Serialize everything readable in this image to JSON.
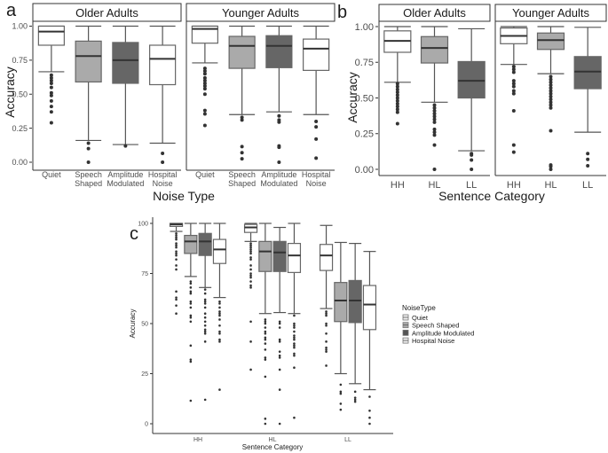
{
  "chart_data": [
    {
      "panel_letter": "a",
      "type": "box",
      "title": "",
      "xlabel": "Noise Type",
      "ylabel": "Accuracy",
      "ylim": [
        0,
        1
      ],
      "yticks": [
        "0.00",
        "0.25",
        "0.50",
        "0.75",
        "1.00"
      ],
      "ytick_values": [
        0,
        0.25,
        0.5,
        0.75,
        1
      ],
      "facets": [
        {
          "name": "Older Adults",
          "boxes": [
            {
              "label": [
                "Quiet"
              ],
              "fill": "#ffffff",
              "lo": 0.665,
              "q1": 0.86,
              "median": 0.96,
              "q3": 1.0,
              "hi": 1.0,
              "outliers": [
                0.64,
                0.62,
                0.6,
                0.58,
                0.55,
                0.51,
                0.49,
                0.45,
                0.41,
                0.37,
                0.29
              ]
            },
            {
              "label": [
                "Speech",
                "Shaped"
              ],
              "fill": "#aaaaaa",
              "lo": 0.16,
              "q1": 0.59,
              "median": 0.78,
              "q3": 0.89,
              "hi": 1.0,
              "outliers": [
                0.14,
                0.1,
                0
              ]
            },
            {
              "label": [
                "Amplitude",
                "Modulated"
              ],
              "fill": "#666666",
              "lo": 0.13,
              "q1": 0.58,
              "median": 0.75,
              "q3": 0.88,
              "hi": 1.0,
              "outliers": [
                0.12
              ]
            },
            {
              "label": [
                "Hospital",
                "Noise"
              ],
              "fill": "#ffffff",
              "lo": 0.14,
              "q1": 0.57,
              "median": 0.76,
              "q3": 0.86,
              "hi": 1.0,
              "outliers": [
                0.065,
                0
              ]
            }
          ]
        },
        {
          "name": "Younger Adults",
          "boxes": [
            {
              "label": [
                "Quiet"
              ],
              "fill": "#ffffff",
              "lo": 0.73,
              "q1": 0.875,
              "median": 0.98,
              "q3": 1.0,
              "hi": 1.0,
              "outliers": [
                0.69,
                0.67,
                0.65,
                0.62,
                0.6,
                0.58,
                0.56,
                0.54,
                0.5,
                0.38,
                0.355,
                0.27
              ]
            },
            {
              "label": [
                "Speech",
                "Shaped"
              ],
              "fill": "#aaaaaa",
              "lo": 0.35,
              "q1": 0.69,
              "median": 0.855,
              "q3": 0.925,
              "hi": 1.0,
              "outliers": [
                0.33,
                0.31,
                0.115,
                0.07,
                0.025
              ]
            },
            {
              "label": [
                "Amplitude",
                "Modulated"
              ],
              "fill": "#666666",
              "lo": 0.37,
              "q1": 0.695,
              "median": 0.855,
              "q3": 0.93,
              "hi": 1.0,
              "outliers": [
                0.34,
                0.31,
                0.295,
                0.12,
                0.11,
                0
              ]
            },
            {
              "label": [
                "Hospital",
                "Noise"
              ],
              "fill": "#ffffff",
              "lo": 0.35,
              "q1": 0.675,
              "median": 0.835,
              "q3": 0.905,
              "hi": 1.0,
              "outliers": [
                0.3,
                0.26,
                0.17,
                0.03
              ]
            }
          ]
        }
      ]
    },
    {
      "panel_letter": "b",
      "type": "box",
      "title": "",
      "xlabel": "Sentence Category",
      "ylabel": "Accuracy",
      "ylim": [
        0,
        1
      ],
      "yticks": [
        "0.00",
        "0.25",
        "0.50",
        "0.75",
        "1.00"
      ],
      "ytick_values": [
        0,
        0.25,
        0.5,
        0.75,
        1
      ],
      "facets": [
        {
          "name": "Older Adults",
          "boxes": [
            {
              "label": [
                "HH"
              ],
              "fill": "#ffffff",
              "lo": 0.61,
              "q1": 0.82,
              "median": 0.9,
              "q3": 0.97,
              "hi": 1.0,
              "outliers": [
                0.6,
                0.58,
                0.56,
                0.54,
                0.52,
                0.5,
                0.48,
                0.46,
                0.44,
                0.42,
                0.4,
                0.32
              ]
            },
            {
              "label": [
                "HL"
              ],
              "fill": "#aaaaaa",
              "lo": 0.47,
              "q1": 0.745,
              "median": 0.85,
              "q3": 0.93,
              "hi": 1.0,
              "outliers": [
                0.45,
                0.43,
                0.41,
                0.39,
                0.37,
                0.35,
                0.33,
                0.28,
                0.26,
                0.24,
                0.17,
                0
              ]
            },
            {
              "label": [
                "LL"
              ],
              "fill": "#666666",
              "lo": 0.13,
              "q1": 0.5,
              "median": 0.62,
              "q3": 0.755,
              "hi": 0.985,
              "outliers": [
                0.11,
                0.1,
                0.065,
                0
              ]
            }
          ]
        },
        {
          "name": "Younger Adults",
          "boxes": [
            {
              "label": [
                "HH"
              ],
              "fill": "#ffffff",
              "lo": 0.735,
              "q1": 0.88,
              "median": 0.935,
              "q3": 0.99,
              "hi": 1.0,
              "outliers": [
                0.72,
                0.7,
                0.68,
                0.62,
                0.6,
                0.58,
                0.55,
                0.53,
                0.41,
                0.17,
                0.12
              ]
            },
            {
              "label": [
                "HL"
              ],
              "fill": "#aaaaaa",
              "lo": 0.67,
              "q1": 0.84,
              "median": 0.905,
              "q3": 0.955,
              "hi": 1.0,
              "outliers": [
                0.65,
                0.63,
                0.61,
                0.59,
                0.57,
                0.55,
                0.53,
                0.51,
                0.49,
                0.47,
                0.45,
                0.43,
                0.27,
                0.03,
                0.02,
                0
              ]
            },
            {
              "label": [
                "LL"
              ],
              "fill": "#666666",
              "lo": 0.26,
              "q1": 0.565,
              "median": 0.685,
              "q3": 0.79,
              "hi": 0.995,
              "outliers": [
                0.11,
                0.07,
                0.025
              ]
            }
          ]
        }
      ]
    },
    {
      "panel_letter": "c",
      "type": "box",
      "title": "",
      "xlabel": "Sentence Category",
      "ylabel": "Accuracy",
      "ylim": [
        0,
        100
      ],
      "yticks": [
        "0",
        "25",
        "50",
        "75",
        "100"
      ],
      "ytick_values": [
        0,
        25,
        50,
        75,
        100
      ],
      "legend": {
        "title": "NoiseType",
        "placement": "right",
        "entries": [
          {
            "name": "Quiet",
            "fill": "#eeeeee"
          },
          {
            "name": "Speech Shaped",
            "fill": "#aaaaaa"
          },
          {
            "name": "Amplitude Modulated",
            "fill": "#555555"
          },
          {
            "name": "Hospital Noise",
            "fill": "#eeeeee"
          }
        ]
      },
      "facets": [
        {
          "name": "HH",
          "boxes": [
            {
              "series": "Quiet",
              "fill": "#ffffff",
              "lo": 96,
              "q1": 98.5,
              "median": 99.5,
              "q3": 100,
              "hi": 100,
              "outliers": [
                95,
                94,
                93,
                92,
                90,
                89,
                88,
                86,
                85,
                84,
                82,
                79,
                77,
                66,
                63,
                62,
                59,
                55
              ]
            },
            {
              "series": "Speech Shaped",
              "fill": "#aaaaaa",
              "lo": 73.5,
              "q1": 85,
              "median": 91,
              "q3": 94,
              "hi": 100,
              "outliers": [
                71,
                70,
                68,
                66,
                65,
                61,
                60,
                58,
                54,
                53,
                51,
                39,
                32,
                31,
                11.5
              ]
            },
            {
              "series": "Amplitude Modulated",
              "fill": "#666666",
              "lo": 68,
              "q1": 84,
              "median": 91,
              "q3": 95,
              "hi": 100,
              "outliers": [
                67,
                65,
                62,
                61,
                60,
                58,
                55,
                53,
                51,
                49,
                47,
                46,
                45,
                41,
                12
              ]
            },
            {
              "series": "Hospital Noise",
              "fill": "#ffffff",
              "lo": 63,
              "q1": 80,
              "median": 87,
              "q3": 92,
              "hi": 100,
              "outliers": [
                61,
                60,
                58,
                56,
                55,
                54,
                52,
                49,
                46,
                45,
                42,
                41,
                17
              ]
            }
          ]
        },
        {
          "name": "HL",
          "boxes": [
            {
              "series": "Quiet",
              "fill": "#ffffff",
              "lo": 91,
              "q1": 95.5,
              "median": 98,
              "q3": 99.5,
              "hi": 100,
              "outliers": [
                90,
                89,
                88,
                87,
                86,
                85,
                83,
                82,
                79,
                77,
                75,
                74,
                73,
                71,
                69,
                68,
                51,
                41,
                27
              ]
            },
            {
              "series": "Speech Shaped",
              "fill": "#aaaaaa",
              "lo": 55,
              "q1": 76,
              "median": 86,
              "q3": 91,
              "hi": 100,
              "outliers": [
                52,
                51,
                50,
                48,
                46,
                45,
                43,
                42,
                40,
                37,
                33,
                32,
                23.5,
                2.5,
                0
              ]
            },
            {
              "series": "Amplitude Modulated",
              "fill": "#666666",
              "lo": 55.5,
              "q1": 76,
              "median": 85.5,
              "q3": 91,
              "hi": 98,
              "outliers": [
                51,
                50,
                48,
                42,
                41,
                36,
                34,
                33,
                27,
                17,
                0
              ]
            },
            {
              "series": "Hospital Noise",
              "fill": "#ffffff",
              "lo": 55,
              "q1": 75.5,
              "median": 84,
              "q3": 90,
              "hi": 100,
              "outliers": [
                54,
                50,
                49,
                48,
                46,
                44,
                43,
                42,
                40,
                39,
                38,
                35,
                34,
                28,
                3
              ]
            }
          ]
        },
        {
          "name": "LL",
          "boxes": [
            {
              "series": "Quiet",
              "fill": "#ffffff",
              "lo": 57.5,
              "q1": 76.5,
              "median": 84,
              "q3": 89.5,
              "hi": 99,
              "outliers": [
                56,
                55,
                54,
                50,
                49,
                45,
                41,
                38,
                37,
                36,
                29
              ]
            },
            {
              "series": "Speech Shaped",
              "fill": "#aaaaaa",
              "lo": 25,
              "q1": 51,
              "median": 61.5,
              "q3": 70.5,
              "hi": 90.5,
              "outliers": [
                19.5,
                16,
                15,
                10,
                7
              ]
            },
            {
              "series": "Amplitude Modulated",
              "fill": "#666666",
              "lo": 20,
              "q1": 50.5,
              "median": 61.5,
              "q3": 71.5,
              "hi": 90,
              "outliers": [
                16,
                13,
                12,
                11
              ]
            },
            {
              "series": "Hospital Noise",
              "fill": "#ffffff",
              "lo": 17,
              "q1": 47,
              "median": 59.5,
              "q3": 69,
              "hi": 86,
              "outliers": [
                13.5,
                6.5,
                3,
                0
              ]
            }
          ]
        }
      ]
    }
  ]
}
